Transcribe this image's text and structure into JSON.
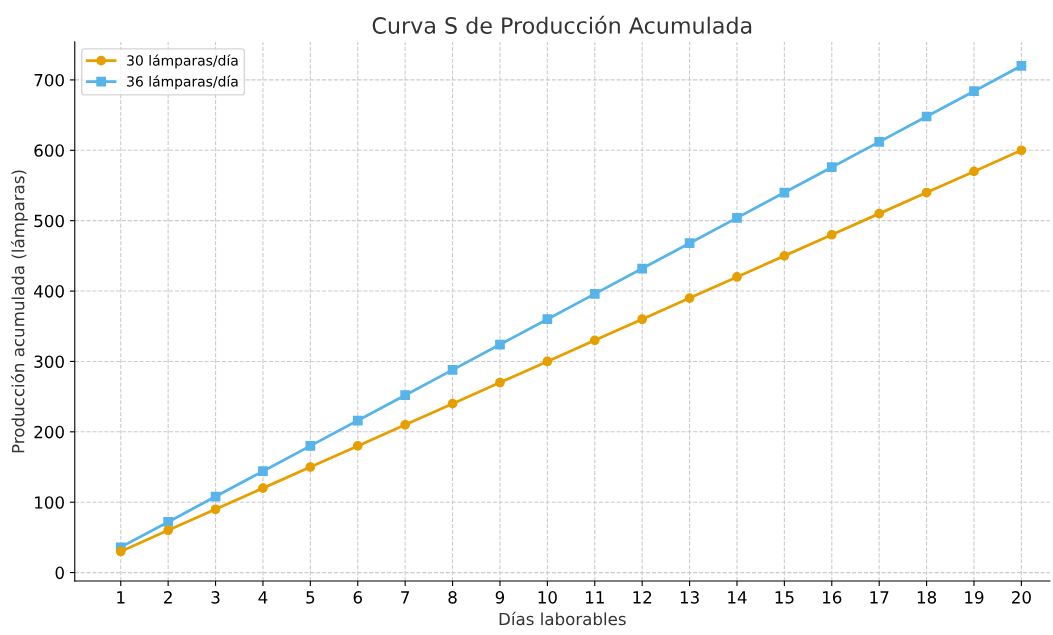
{
  "chart_data": {
    "type": "line",
    "title": "Curva S de Producción Acumulada",
    "xlabel": "Días laborables",
    "ylabel": "Producción acumulada (lámparas)",
    "x": [
      1,
      2,
      3,
      4,
      5,
      6,
      7,
      8,
      9,
      10,
      11,
      12,
      13,
      14,
      15,
      16,
      17,
      18,
      19,
      20
    ],
    "series": [
      {
        "name": "30 lámparas/día",
        "color": "#e69f00",
        "marker": "circle",
        "values": [
          30,
          60,
          90,
          120,
          150,
          180,
          210,
          240,
          270,
          300,
          330,
          360,
          390,
          420,
          450,
          480,
          510,
          540,
          570,
          600
        ]
      },
      {
        "name": "36 lámparas/día",
        "color": "#56b4e9",
        "marker": "square",
        "values": [
          36,
          72,
          108,
          144,
          180,
          216,
          252,
          288,
          324,
          360,
          396,
          432,
          468,
          504,
          540,
          576,
          612,
          648,
          684,
          720
        ]
      }
    ],
    "xlim": [
      0.03,
      20.6
    ],
    "xticks": [
      1,
      2,
      3,
      4,
      5,
      6,
      7,
      8,
      9,
      10,
      11,
      12,
      13,
      14,
      15,
      16,
      17,
      18,
      19,
      20
    ],
    "ylim": [
      -12,
      754
    ],
    "yticks": [
      0,
      100,
      200,
      300,
      400,
      500,
      600,
      700
    ],
    "grid": true,
    "legend": "top left",
    "line_style": "solid"
  }
}
